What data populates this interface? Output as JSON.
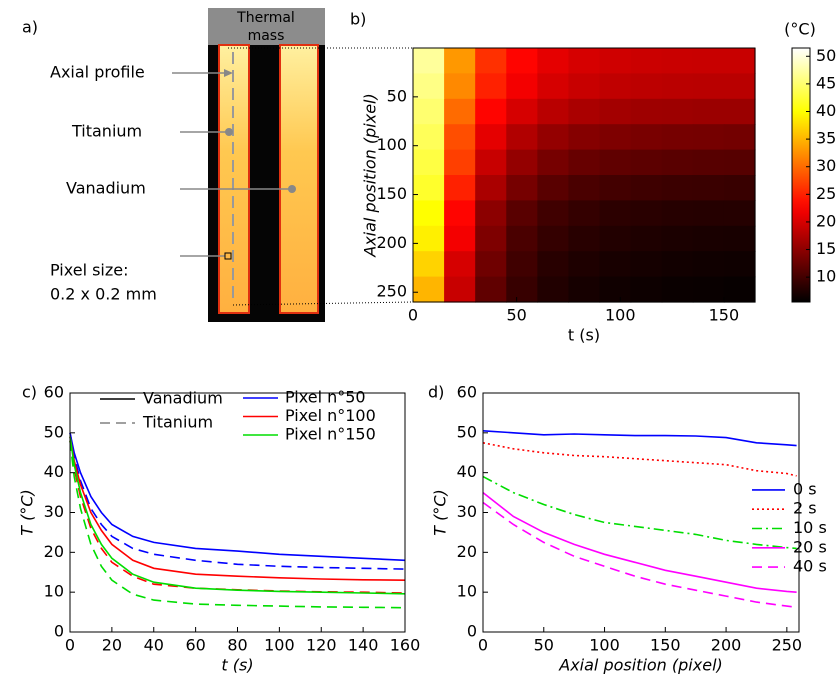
{
  "diagram": {
    "panel": "a)",
    "mass_label": [
      "Thermal",
      "mass"
    ],
    "labels": [
      "Axial profile",
      "Titanium",
      "Vanadium"
    ],
    "pixel_size": [
      "Pixel size:",
      "0.2 x 0.2 mm"
    ]
  },
  "chart_data": [
    {
      "type": "heatmap",
      "panel": "b)",
      "xlabel": "t (s)",
      "ylabel": "Axial position (pixel)",
      "x": [
        7.5,
        22.5,
        37.5,
        52.5,
        67.5,
        82.5,
        97.5,
        112.5,
        127.5,
        142.5,
        157.5
      ],
      "y": [
        13,
        39,
        65,
        91,
        117,
        143,
        169,
        195,
        221,
        247
      ],
      "z": [
        [
          47,
          33,
          26,
          23,
          21,
          20,
          19.5,
          19.2,
          19.1,
          19,
          19
        ],
        [
          46,
          32,
          25,
          22,
          20,
          19,
          18.5,
          18.2,
          18.1,
          18,
          18
        ],
        [
          45,
          30,
          23,
          20,
          18,
          17,
          16.5,
          16.2,
          16.1,
          16,
          16
        ],
        [
          44,
          28,
          21,
          17.5,
          15.5,
          14.5,
          14,
          13.7,
          13.5,
          13.4,
          13.3
        ],
        [
          43,
          27,
          19,
          15.5,
          13.5,
          12.5,
          12,
          11.7,
          11.5,
          11.4,
          11.3
        ],
        [
          42,
          25,
          17,
          13.5,
          11.5,
          10.5,
          10,
          9.7,
          9.5,
          9.4,
          9.3
        ],
        [
          40,
          23,
          15,
          11.5,
          9.8,
          9,
          8.5,
          8.3,
          8.1,
          8,
          8
        ],
        [
          39,
          22,
          14,
          10.5,
          9,
          8.2,
          7.8,
          7.5,
          7.3,
          7.2,
          7.1
        ],
        [
          37,
          20,
          13,
          9.8,
          8.2,
          7.5,
          7.1,
          6.9,
          6.7,
          6.6,
          6.5
        ],
        [
          35,
          19,
          12,
          9.2,
          7.7,
          7,
          6.6,
          6.4,
          6.2,
          6.1,
          6
        ]
      ],
      "xlim": [
        0,
        165
      ],
      "ylim": [
        0,
        260
      ],
      "y_inverted": true,
      "xticks": [
        0,
        50,
        100,
        150
      ],
      "yticks": [
        50,
        100,
        150,
        200,
        250
      ],
      "colormap": "hot",
      "clim": [
        5.5,
        51.5
      ],
      "colorbar_label": "(°C)",
      "colorbar_ticks": [
        10,
        15,
        20,
        25,
        30,
        35,
        40,
        45,
        50
      ]
    },
    {
      "type": "line",
      "panel": "c)",
      "xlabel": "t (s)",
      "ylabel": "T (°C)",
      "x": [
        0,
        2,
        5,
        10,
        15,
        20,
        30,
        40,
        60,
        80,
        100,
        120,
        140,
        160
      ],
      "xlim": [
        0,
        160
      ],
      "ylim": [
        0,
        60
      ],
      "xticks": [
        0,
        20,
        40,
        60,
        80,
        100,
        120,
        140,
        160
      ],
      "yticks": [
        0,
        10,
        20,
        30,
        40,
        50,
        60
      ],
      "line_styles": [
        {
          "name": "Vanadium",
          "dash": "solid",
          "color": "#000000"
        },
        {
          "name": "Titanium",
          "dash": "dashed",
          "color": "#808080"
        }
      ],
      "series": [
        {
          "name": "Pixel n°50",
          "color": "#0000ff",
          "values": [
            [
              50,
              45,
              40,
              34,
              30,
              27,
              24,
              22.5,
              21,
              20.3,
              19.5,
              19,
              18.5,
              18
            ],
            [
              50,
              44,
              38,
              31,
              27,
              24,
              21,
              19.5,
              18,
              17,
              16.5,
              16.2,
              16,
              15.8
            ]
          ]
        },
        {
          "name": "Pixel n°100",
          "color": "#ff0000",
          "values": [
            [
              49,
              43,
              37,
              30,
              25.5,
              22,
              18,
              16,
              14.5,
              14,
              13.6,
              13.3,
              13.1,
              13
            ],
            [
              48,
              41,
              34,
              26,
              21,
              17.5,
              14,
              12,
              11,
              10.6,
              10.3,
              10.1,
              10,
              9.8
            ]
          ]
        },
        {
          "name": "Pixel n°150",
          "color": "#00dd00",
          "values": [
            [
              49,
              42,
              35,
              27,
              22,
              18.5,
              14.5,
              12.5,
              11,
              10.5,
              10.2,
              10,
              9.8,
              9.6
            ],
            [
              48,
              39,
              31,
              22,
              16.5,
              13,
              9.5,
              8,
              7,
              6.7,
              6.5,
              6.3,
              6.2,
              6.1
            ]
          ]
        }
      ]
    },
    {
      "type": "line",
      "panel": "d)",
      "xlabel": "Axial position (pixel)",
      "ylabel": "T (°C)",
      "x": [
        0,
        25,
        50,
        75,
        100,
        125,
        150,
        175,
        200,
        225,
        250,
        258
      ],
      "xlim": [
        0,
        260
      ],
      "ylim": [
        0,
        60
      ],
      "xticks": [
        0,
        50,
        100,
        150,
        200,
        250
      ],
      "yticks": [
        0,
        10,
        20,
        30,
        40,
        50,
        60
      ],
      "legend": "center-right",
      "series": [
        {
          "name": "0 s",
          "color": "#0000ff",
          "dash": "solid",
          "values": [
            50.5,
            50,
            49.5,
            49.7,
            49.5,
            49.3,
            49.3,
            49.2,
            48.8,
            47.5,
            47,
            46.8
          ]
        },
        {
          "name": "2 s",
          "color": "#ff0000",
          "dash": "dotted",
          "values": [
            47.5,
            46,
            45,
            44.3,
            44,
            43.5,
            43,
            42.5,
            42,
            40.5,
            39.8,
            39.2
          ]
        },
        {
          "name": "10 s",
          "color": "#00dd00",
          "dash": "dashdot",
          "values": [
            39,
            35,
            32,
            29.5,
            27.5,
            26.5,
            25.5,
            24.5,
            23,
            22,
            21.2,
            21
          ]
        },
        {
          "name": "20 s",
          "color": "#ff00ff",
          "dash": "solid",
          "values": [
            35,
            29,
            25,
            22,
            19.5,
            17.5,
            15.5,
            14,
            12.5,
            11,
            10.2,
            10
          ]
        },
        {
          "name": "40 s",
          "color": "#ff00ff",
          "dash": "dashed",
          "values": [
            32.5,
            27,
            22.5,
            19,
            16.5,
            14,
            12,
            10.5,
            9,
            7.5,
            6.5,
            6.2
          ]
        }
      ]
    }
  ]
}
